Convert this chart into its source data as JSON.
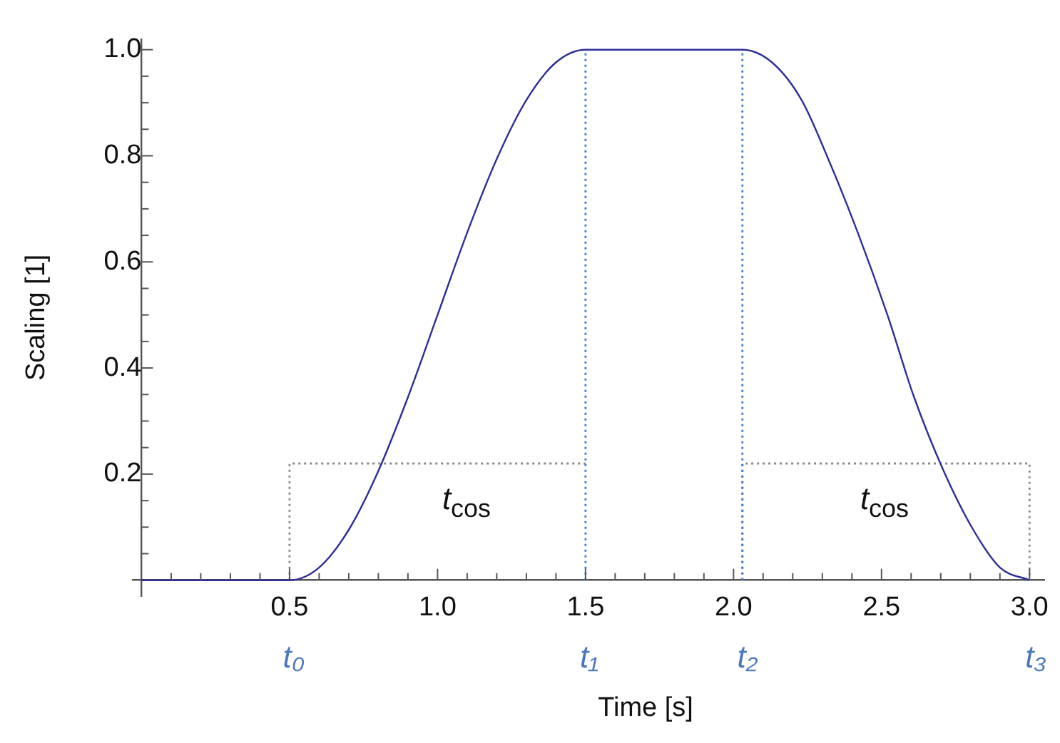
{
  "chart_data": {
    "type": "line",
    "xlabel": "Time [s]",
    "ylabel": "Scaling [1]",
    "xlim": [
      -0.03,
      3.05
    ],
    "ylim": [
      -0.03,
      1.02
    ],
    "xticks": [
      {
        "value": 0.1,
        "label": null
      },
      {
        "value": 0.2,
        "label": null
      },
      {
        "value": 0.3,
        "label": null
      },
      {
        "value": 0.4,
        "label": null
      },
      {
        "value": 0.5,
        "label": "0.5"
      },
      {
        "value": 0.6,
        "label": null
      },
      {
        "value": 0.7,
        "label": null
      },
      {
        "value": 0.8,
        "label": null
      },
      {
        "value": 0.9,
        "label": null
      },
      {
        "value": 1.0,
        "label": "1.0"
      },
      {
        "value": 1.1,
        "label": null
      },
      {
        "value": 1.2,
        "label": null
      },
      {
        "value": 1.3,
        "label": null
      },
      {
        "value": 1.4,
        "label": null
      },
      {
        "value": 1.5,
        "label": "1.5"
      },
      {
        "value": 1.6,
        "label": null
      },
      {
        "value": 1.7,
        "label": null
      },
      {
        "value": 1.8,
        "label": null
      },
      {
        "value": 1.9,
        "label": null
      },
      {
        "value": 2.0,
        "label": "2.0"
      },
      {
        "value": 2.1,
        "label": null
      },
      {
        "value": 2.2,
        "label": null
      },
      {
        "value": 2.3,
        "label": null
      },
      {
        "value": 2.4,
        "label": null
      },
      {
        "value": 2.5,
        "label": "2.5"
      },
      {
        "value": 2.6,
        "label": null
      },
      {
        "value": 2.7,
        "label": null
      },
      {
        "value": 2.8,
        "label": null
      },
      {
        "value": 2.9,
        "label": null
      },
      {
        "value": 3.0,
        "label": "3.0"
      }
    ],
    "yticks": [
      {
        "value": 0.05,
        "label": null
      },
      {
        "value": 0.1,
        "label": null
      },
      {
        "value": 0.15,
        "label": null
      },
      {
        "value": 0.2,
        "label": "0.2"
      },
      {
        "value": 0.25,
        "label": null
      },
      {
        "value": 0.3,
        "label": null
      },
      {
        "value": 0.35,
        "label": null
      },
      {
        "value": 0.4,
        "label": "0.4"
      },
      {
        "value": 0.45,
        "label": null
      },
      {
        "value": 0.5,
        "label": null
      },
      {
        "value": 0.55,
        "label": null
      },
      {
        "value": 0.6,
        "label": "0.6"
      },
      {
        "value": 0.65,
        "label": null
      },
      {
        "value": 0.7,
        "label": null
      },
      {
        "value": 0.75,
        "label": null
      },
      {
        "value": 0.8,
        "label": "0.8"
      },
      {
        "value": 0.85,
        "label": null
      },
      {
        "value": 0.9,
        "label": null
      },
      {
        "value": 0.95,
        "label": null
      },
      {
        "value": 1.0,
        "label": "1.0"
      }
    ],
    "grid": false,
    "legend": false,
    "marker": "none",
    "series": [
      {
        "color": "#2e2e9a",
        "line_style": "solid",
        "x": [
          0,
          0.5,
          0.6,
          0.7,
          0.8,
          0.9,
          1.0,
          1.1,
          1.2,
          1.3,
          1.4,
          1.5,
          2.03,
          2.13,
          2.23,
          2.32,
          2.42,
          2.52,
          2.61,
          2.71,
          2.81,
          2.9,
          3.0
        ],
        "values": [
          0,
          0,
          0.024,
          0.095,
          0.206,
          0.345,
          0.5,
          0.655,
          0.794,
          0.905,
          0.976,
          1,
          1,
          0.976,
          0.905,
          0.794,
          0.655,
          0.5,
          0.345,
          0.206,
          0.095,
          0.024,
          0
        ]
      },
      {
        "color": "#3f7ccf",
        "line_style": "dotted",
        "x": [
          1.5,
          1.5
        ],
        "values": [
          0,
          1
        ]
      },
      {
        "color": "#3f7ccf",
        "line_style": "dotted",
        "x": [
          2.03,
          2.03
        ],
        "values": [
          0,
          1
        ]
      },
      {
        "color": "#8a8a8a",
        "line_style": "dotted",
        "x": [
          0.5,
          0.5,
          1.5
        ],
        "values": [
          0,
          0.22,
          0.22
        ]
      },
      {
        "color": "#8a8a8a",
        "line_style": "dotted",
        "x": [
          2.03,
          2.03,
          3.0,
          3.0
        ],
        "values": [
          0,
          0.22,
          0.22,
          0
        ]
      }
    ],
    "annotations": [
      "t$_{cos}$",
      "t$_{cos}$",
      "t₀",
      "t₁",
      "t₂",
      "t₃"
    ]
  }
}
